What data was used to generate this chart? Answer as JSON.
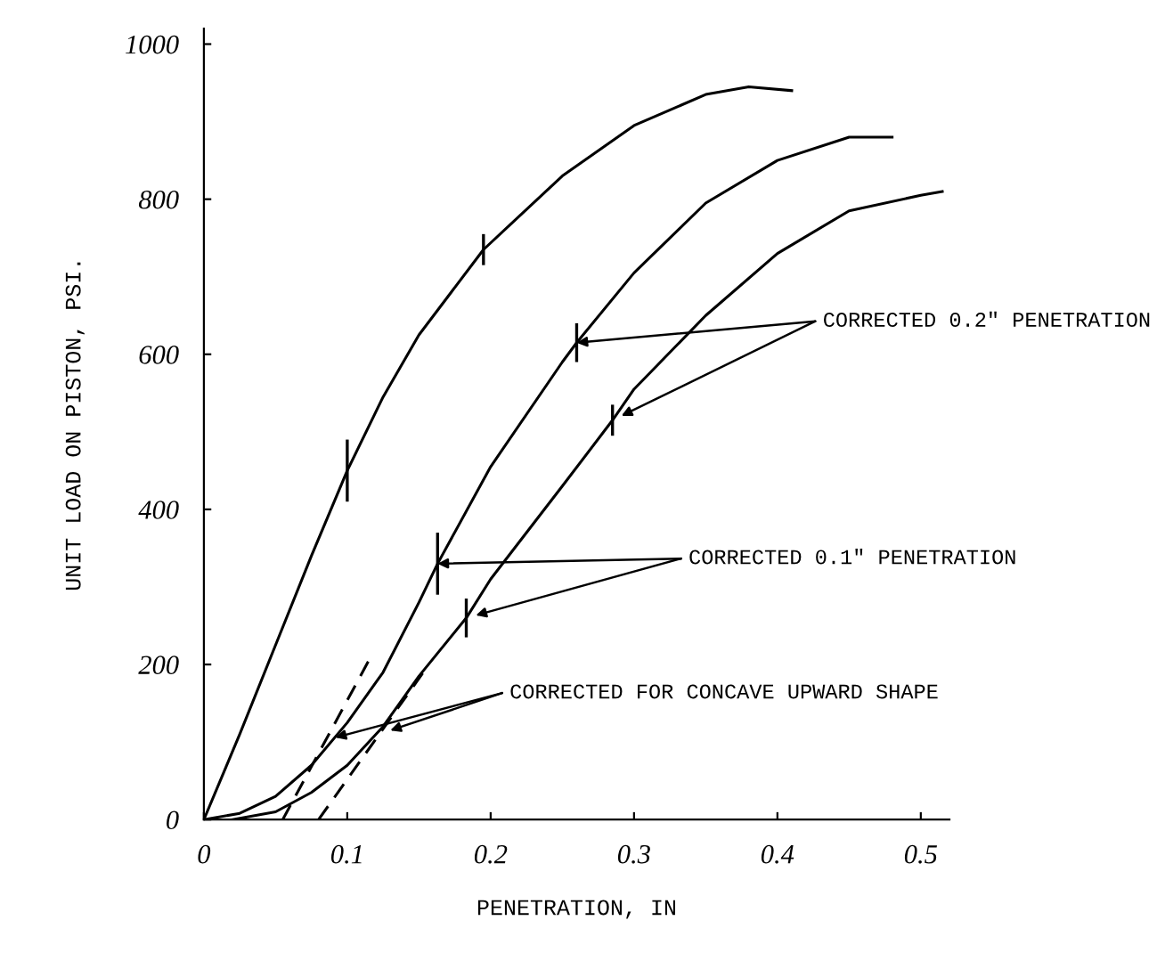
{
  "chart_data": {
    "type": "line",
    "xlabel": "PENETRATION, IN",
    "ylabel": "UNIT LOAD ON PISTON, PSI.",
    "xlim": [
      0,
      0.52
    ],
    "ylim": [
      0,
      1020
    ],
    "xticks": [
      {
        "value": 0,
        "label": "0"
      },
      {
        "value": 0.1,
        "label": "0.1"
      },
      {
        "value": 0.2,
        "label": "0.2"
      },
      {
        "value": 0.3,
        "label": "0.3"
      },
      {
        "value": 0.4,
        "label": "0.4"
      },
      {
        "value": 0.5,
        "label": "0.5"
      }
    ],
    "yticks": [
      0,
      200,
      400,
      600,
      800,
      1000
    ],
    "grid": false,
    "legend": false,
    "marker": "none",
    "line_style": "solid",
    "series": [
      {
        "color": "#000000",
        "x": [
          0,
          0.025,
          0.05,
          0.075,
          0.1,
          0.125,
          0.15,
          0.195,
          0.25,
          0.3,
          0.35,
          0.38,
          0.41
        ],
        "values": [
          0,
          110,
          225,
          340,
          450,
          545,
          625,
          735,
          830,
          895,
          935,
          945,
          940
        ],
        "errors": [
          null,
          null,
          null,
          null,
          40,
          null,
          null,
          20,
          null,
          null,
          null,
          null,
          null
        ]
      },
      {
        "color": "#000000",
        "x": [
          0,
          0.025,
          0.05,
          0.075,
          0.1,
          0.125,
          0.15,
          0.163,
          0.2,
          0.25,
          0.26,
          0.3,
          0.35,
          0.4,
          0.45,
          0.48
        ],
        "values": [
          0,
          8,
          30,
          70,
          125,
          190,
          280,
          330,
          455,
          590,
          615,
          705,
          795,
          850,
          880,
          880
        ],
        "errors": [
          null,
          null,
          null,
          null,
          null,
          null,
          null,
          40,
          null,
          null,
          25,
          null,
          null,
          null,
          null,
          null
        ]
      },
      {
        "color": "#000000",
        "x": [
          0.02,
          0.05,
          0.075,
          0.1,
          0.125,
          0.15,
          0.183,
          0.2,
          0.25,
          0.285,
          0.3,
          0.35,
          0.4,
          0.45,
          0.5,
          0.515
        ],
        "values": [
          0,
          10,
          35,
          70,
          120,
          185,
          260,
          310,
          430,
          515,
          555,
          650,
          730,
          785,
          805,
          810
        ],
        "errors": [
          null,
          null,
          null,
          null,
          null,
          null,
          25,
          null,
          null,
          20,
          null,
          null,
          null,
          null,
          null,
          null
        ]
      },
      {
        "color": "#000000",
        "line_style": "dashed",
        "x": [
          0.055,
          0.115
        ],
        "values": [
          0,
          205
        ]
      },
      {
        "color": "#000000",
        "line_style": "dashed",
        "x": [
          0.08,
          0.155
        ],
        "values": [
          0,
          195
        ]
      }
    ],
    "annotations": [
      {
        "text": "CORRECTED 0.2\" PENETRATION",
        "x": 0.26,
        "y": 615
      },
      {
        "text": "CORRECTED 0.1\" PENETRATION",
        "x": 0.163,
        "y": 330
      },
      {
        "text": "CORRECTED FOR CONCAVE UPWARD SHAPE",
        "x": 0.13,
        "y": 115
      }
    ]
  }
}
